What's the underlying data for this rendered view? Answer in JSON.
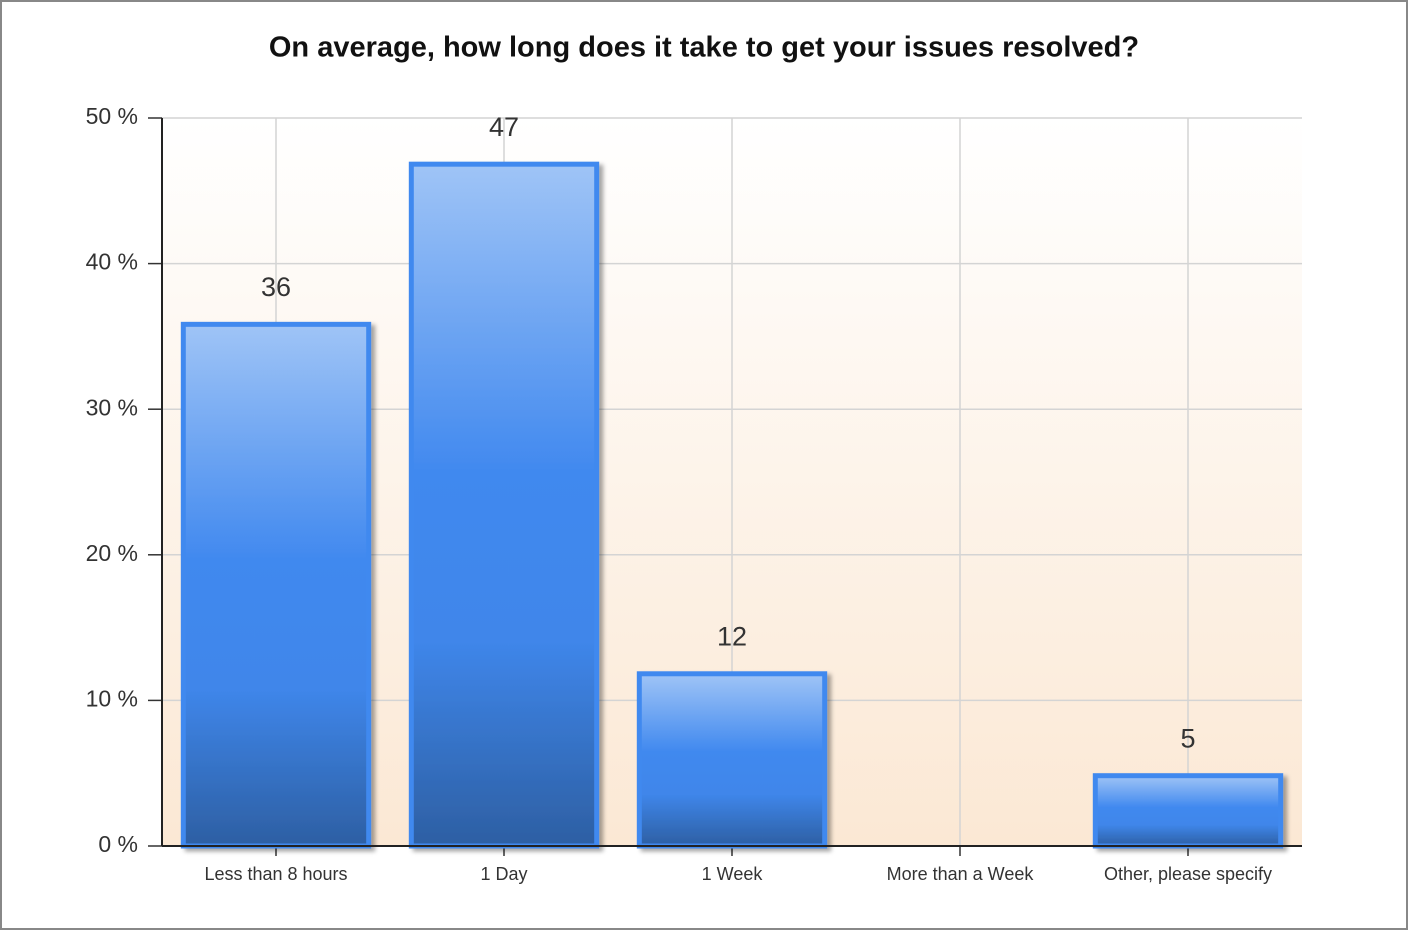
{
  "chart_data": {
    "type": "bar",
    "title": "On average, how long does it take to get your issues resolved?",
    "categories": [
      "Less than 8 hours",
      "1 Day",
      "1 Week",
      "More than a Week",
      "Other, please specify"
    ],
    "values": [
      36,
      47,
      12,
      0,
      5
    ],
    "color": "#4189ef",
    "ylim": [
      0,
      50
    ],
    "yticks": [
      {
        "value": 0,
        "label": "0 %"
      },
      {
        "value": 10,
        "label": "10 %"
      },
      {
        "value": 20,
        "label": "20 %"
      },
      {
        "value": 30,
        "label": "30 %"
      },
      {
        "value": 40,
        "label": "40 %"
      },
      {
        "value": 50,
        "label": "50 %"
      }
    ],
    "grid": true
  }
}
